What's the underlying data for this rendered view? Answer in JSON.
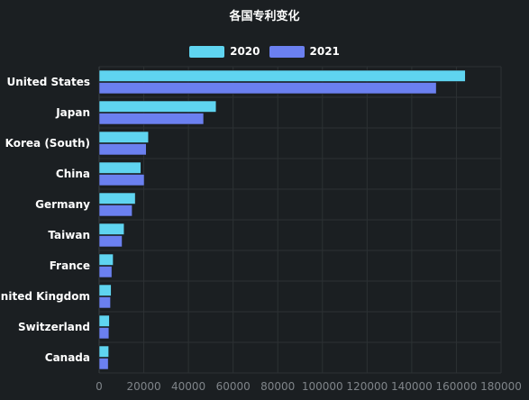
{
  "chart_data": {
    "type": "bar",
    "orientation": "horizontal",
    "title": "各国专利变化",
    "categories": [
      "United States",
      "Japan",
      "Korea (South)",
      "China",
      "Germany",
      "Taiwan",
      "France",
      "United Kingdom",
      "Switzerland",
      "Canada"
    ],
    "series": [
      {
        "name": "2020",
        "color": "#5fd4f0",
        "values": [
          164000,
          52400,
          22100,
          18700,
          16200,
          11200,
          6300,
          5400,
          4600,
          4300
        ]
      },
      {
        "name": "2021",
        "color": "#6b80f0",
        "values": [
          151000,
          46800,
          21100,
          20200,
          14800,
          10300,
          5700,
          5100,
          4400,
          4100
        ]
      }
    ],
    "xlim": [
      0,
      180000
    ],
    "xticks": [
      0,
      20000,
      40000,
      60000,
      80000,
      100000,
      120000,
      140000,
      160000,
      180000
    ],
    "xlabel": "",
    "ylabel": "",
    "grid": true,
    "legend_position": "top"
  }
}
